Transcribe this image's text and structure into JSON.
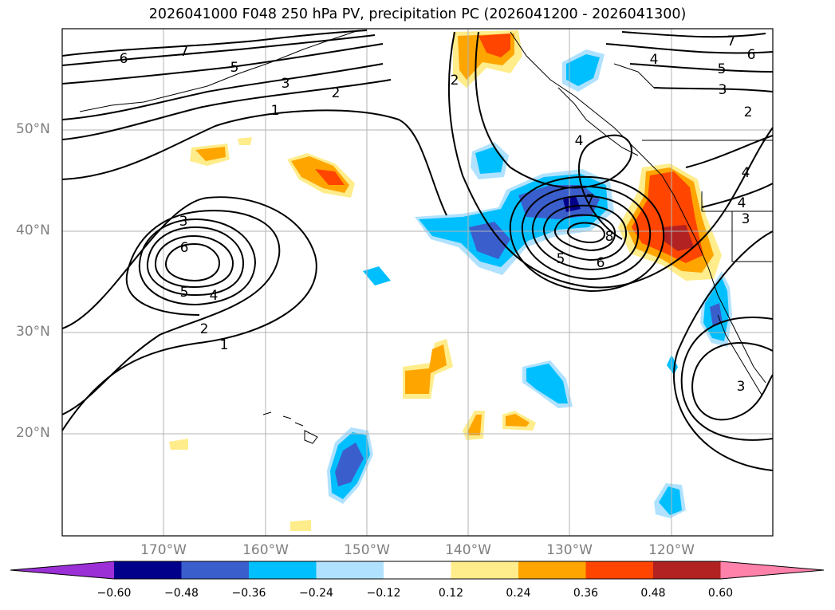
{
  "title": "2026041000 F048 250 hPa PV, precipitation PC (2026041200 - 2026041300)",
  "map": {
    "lat_labels": [
      {
        "lat": 50,
        "label": "50°N"
      },
      {
        "lat": 40,
        "label": "40°N"
      },
      {
        "lat": 30,
        "label": "30°N"
      },
      {
        "lat": 20,
        "label": "20°N"
      }
    ],
    "lon_labels": [
      {
        "lon": -170,
        "label": "170°W"
      },
      {
        "lon": -160,
        "label": "160°W"
      },
      {
        "lon": -150,
        "label": "150°W"
      },
      {
        "lon": -140,
        "label": "140°W"
      },
      {
        "lon": -130,
        "label": "130°W"
      },
      {
        "lon": -120,
        "label": "120°W"
      }
    ],
    "contour_labels": [
      "1",
      "2",
      "3",
      "4",
      "5",
      "6",
      "7",
      "8"
    ]
  },
  "colorbar": {
    "levels": [
      -0.6,
      -0.48,
      -0.36,
      -0.24,
      -0.12,
      0.12,
      0.24,
      0.36,
      0.48,
      0.6
    ],
    "labels": [
      "−0.60",
      "−0.48",
      "−0.36",
      "−0.24",
      "−0.12",
      "0.12",
      "0.24",
      "0.36",
      "0.48",
      "0.60"
    ],
    "colors": [
      "#9b30d6",
      "#00008b",
      "#3a5fcd",
      "#00bfff",
      "#b0e2ff",
      "#ffffff",
      "#ffec8b",
      "#ffa500",
      "#ff4500",
      "#b22222",
      "#ff82ab"
    ]
  }
}
